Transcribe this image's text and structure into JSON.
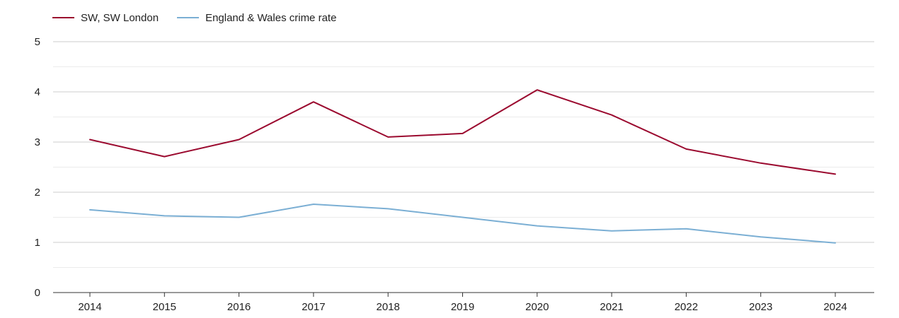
{
  "chart_data": {
    "type": "line",
    "categories": [
      "2014",
      "2015",
      "2016",
      "2017",
      "2018",
      "2019",
      "2020",
      "2021",
      "2022",
      "2023",
      "2024"
    ],
    "series": [
      {
        "name": "SW, SW London",
        "color": "#9b0a2f",
        "values": [
          3.05,
          2.71,
          3.05,
          3.8,
          3.1,
          3.17,
          4.04,
          3.54,
          2.86,
          2.58,
          2.36
        ]
      },
      {
        "name": "England & Wales crime rate",
        "color": "#7bafd4",
        "values": [
          1.65,
          1.53,
          1.5,
          1.76,
          1.67,
          1.5,
          1.33,
          1.23,
          1.27,
          1.11,
          0.99
        ]
      }
    ],
    "y_ticks": [
      0,
      1,
      2,
      3,
      4,
      5
    ],
    "ylim": [
      0,
      5
    ],
    "grid": true,
    "legend_position": "top-left",
    "title": "",
    "xlabel": "",
    "ylabel": ""
  }
}
